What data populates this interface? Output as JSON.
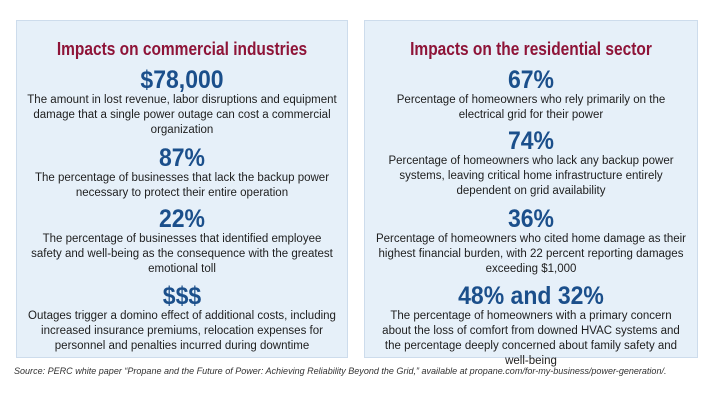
{
  "commercial": {
    "title": "Impacts on commercial industries",
    "stats": [
      {
        "value": "$78,000",
        "text": "The amount in lost revenue, labor disruptions and equipment damage that a single power outage can cost a commercial organization"
      },
      {
        "value": "87%",
        "text": "The percentage of businesses that lack the backup power necessary to protect their entire operation"
      },
      {
        "value": "22%",
        "text": "The percentage of businesses that identified employee safety and well-being as the consequence with the greatest emotional toll"
      },
      {
        "value": "$$$",
        "text": "Outages trigger a domino effect of additional costs, including increased insurance premiums, relocation expenses for personnel and penalties incurred during downtime"
      }
    ]
  },
  "residential": {
    "title": "Impacts on the residential sector",
    "stats": [
      {
        "value": "67%",
        "text": "Percentage of homeowners who rely primarily on the electrical grid for their power"
      },
      {
        "value": "74%",
        "text": "Percentage of homeowners who lack any backup power systems, leaving critical home infrastructure entirely dependent on grid availability"
      },
      {
        "value": "36%",
        "text": "Percentage of homeowners who cited home damage as their highest financial burden, with 22 percent reporting damages exceeding $1,000"
      },
      {
        "value": "48% and 32%",
        "text": "The percentage of homeowners with a primary concern about the loss of comfort from downed HVAC systems and the percentage deeply concerned about family safety and well-being"
      }
    ]
  },
  "source": "Source: PERC white paper “Propane and the Future of Power: Achieving Reliability Beyond the Grid,” available at propane.com/for-my-business/power-generation/."
}
